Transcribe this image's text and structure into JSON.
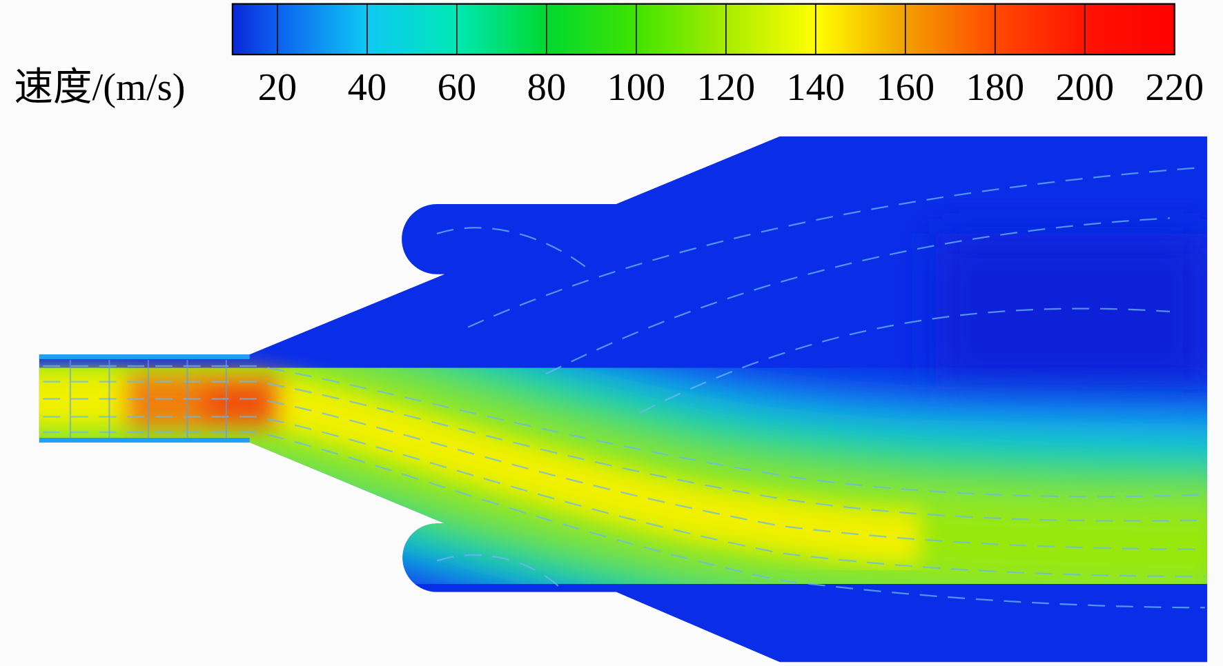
{
  "colorbar": {
    "label": "速度/(m/s)",
    "lim": [
      10,
      220
    ],
    "ticks": [
      20,
      40,
      60,
      80,
      100,
      120,
      140,
      160,
      180,
      200,
      220
    ],
    "colors": [
      "#0a28d8",
      "#0c60f0",
      "#10c8f4",
      "#00e8b4",
      "#00d830",
      "#40e400",
      "#a8ec00",
      "#ffff00",
      "#f2a000",
      "#ff4a00",
      "#ff1400",
      "#ff0000"
    ]
  }
}
